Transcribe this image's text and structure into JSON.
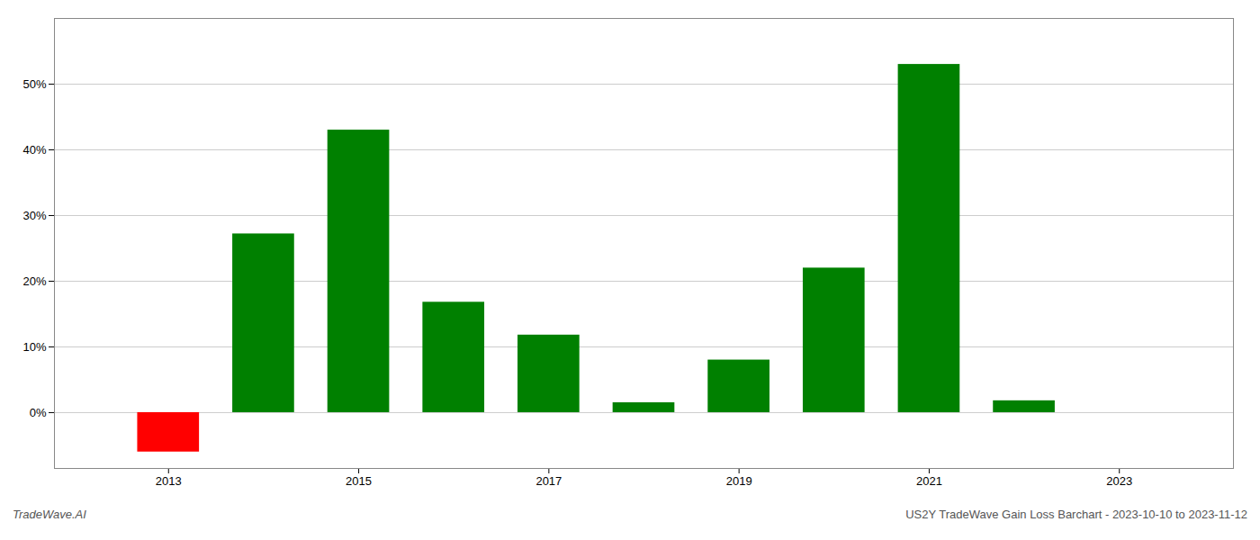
{
  "chart_data": {
    "type": "bar",
    "x": [
      2013,
      2014,
      2015,
      2016,
      2017,
      2018,
      2019,
      2020,
      2021,
      2022,
      2023
    ],
    "values": [
      -0.06,
      0.272,
      0.43,
      0.168,
      0.118,
      0.015,
      0.08,
      0.22,
      0.53,
      0.018,
      0.0
    ],
    "colors": [
      "#ff0000",
      "#008000",
      "#008000",
      "#008000",
      "#008000",
      "#008000",
      "#008000",
      "#008000",
      "#008000",
      "#008000",
      "#008000"
    ],
    "xlim": [
      2011.8,
      2024.2
    ],
    "xticks": [
      2013,
      2015,
      2017,
      2019,
      2021,
      2023
    ],
    "ylim": [
      -0.085,
      0.6
    ],
    "yticks": [
      {
        "value": 0.0,
        "label": "0%"
      },
      {
        "value": 0.1,
        "label": "10%"
      },
      {
        "value": 0.2,
        "label": "20%"
      },
      {
        "value": 0.3,
        "label": "30%"
      },
      {
        "value": 0.4,
        "label": "40%"
      },
      {
        "value": 0.5,
        "label": "50%"
      }
    ],
    "grid": true,
    "annotations": [
      "TradeWave.AI",
      "US2Y TradeWave Gain Loss Barchart - 2023-10-10 to 2023-11-12"
    ]
  }
}
